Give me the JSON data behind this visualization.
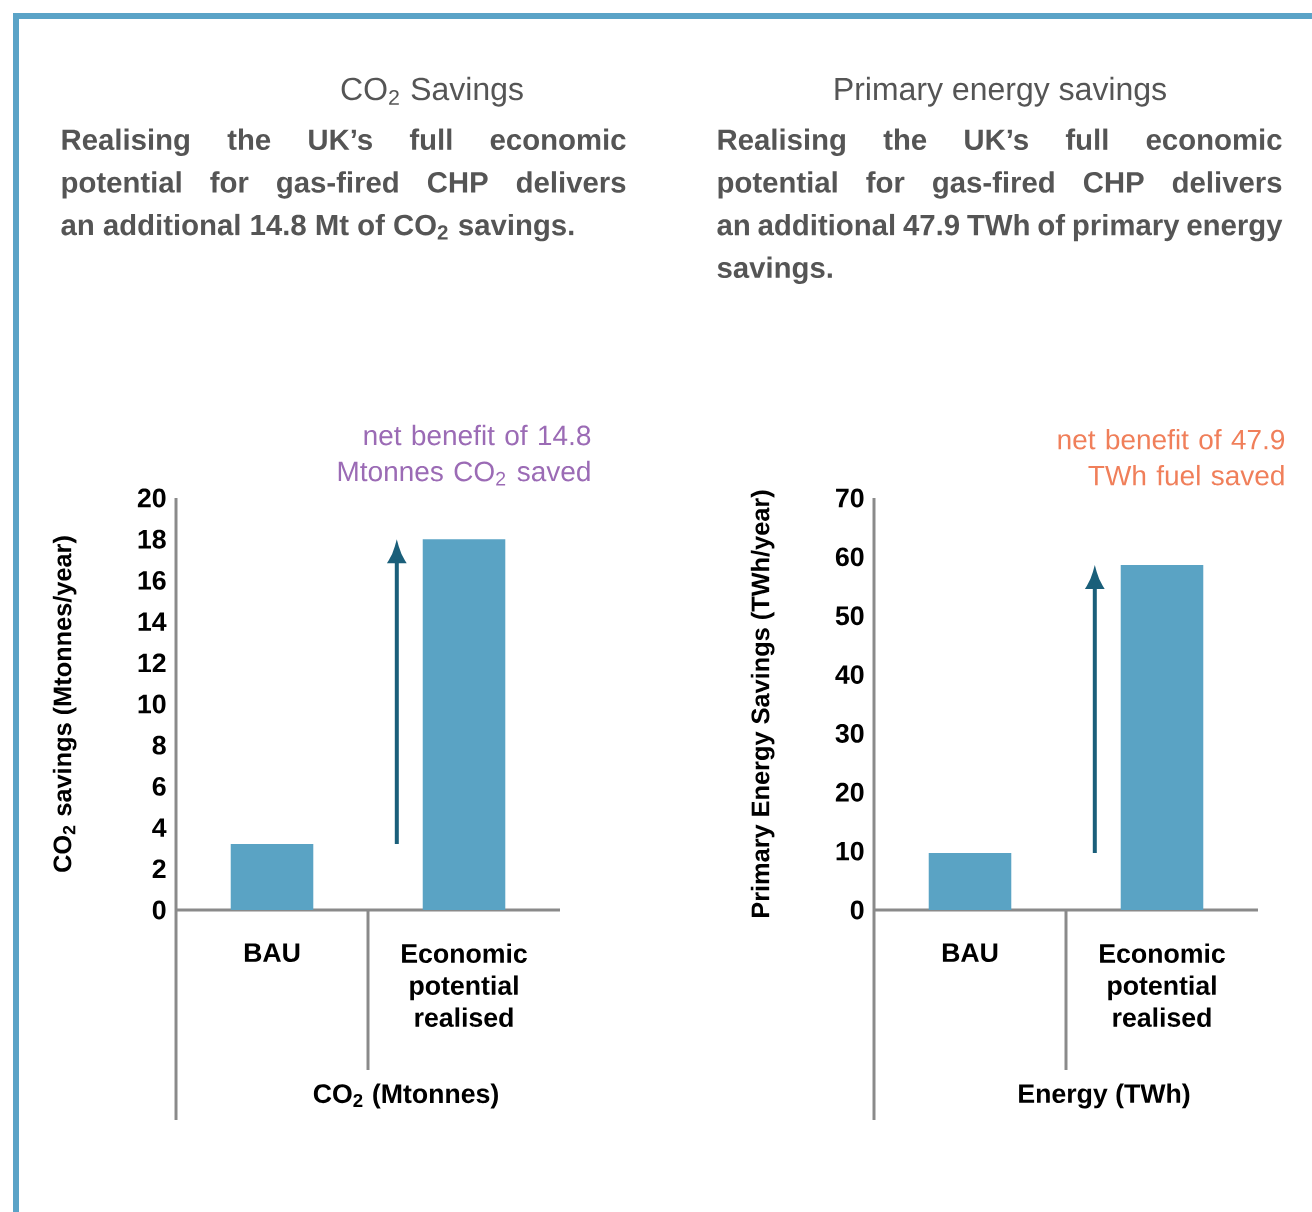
{
  "chart_data": [
    {
      "type": "bar",
      "title": "CO$_{2}$ Savings",
      "subtitle": "Realising the UK’s full economic potential for gas-fired CHP delivers an additional 14.8 Mt of CO$_{2}$ savings.",
      "xlabel": "CO$_{2}$ (Mtonnes)",
      "ylabel": "CO$_{2}$ savings (Mtonnes/year)",
      "categories": [
        "BAU",
        "Economic potential realised"
      ],
      "values": [
        3.2,
        18.0
      ],
      "color": "#5aa3c4",
      "ylim": [
        0,
        20
      ],
      "yticks": [
        0,
        2,
        4,
        6,
        8,
        10,
        12,
        14,
        16,
        18,
        20
      ],
      "annotations": [
        "net benefit of 14.8 Mtonnes CO$_{2}$ saved"
      ]
    },
    {
      "type": "bar",
      "title": "Primary energy savings",
      "subtitle": "Realising the UK’s full economic potential for gas-fired CHP delivers an additional 47.9 TWh of primary energy savings.",
      "xlabel": "Energy (TWh)",
      "ylabel": "Primary Energy Savings (TWh/year)",
      "categories": [
        "BAU",
        "Economic potential realised"
      ],
      "values": [
        9.7,
        58.6
      ],
      "color": "#5aa3c4",
      "ylim": [
        0,
        70
      ],
      "yticks": [
        0,
        10,
        20,
        30,
        40,
        50,
        60,
        70
      ],
      "annotations": [
        "net benefit of 47.9 TWh fuel saved"
      ]
    }
  ]
}
